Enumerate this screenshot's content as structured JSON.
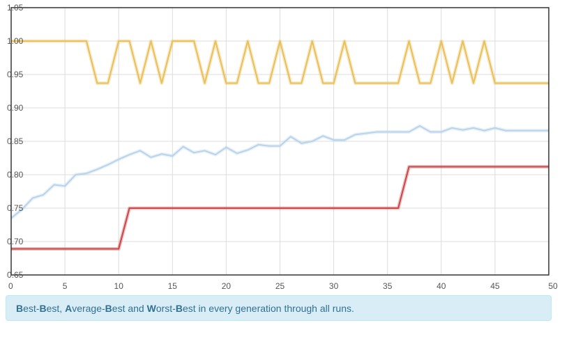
{
  "chart_data": {
    "type": "line",
    "xlim": [
      0,
      50
    ],
    "ylim": [
      0.65,
      1.05
    ],
    "x_ticks": [
      "0",
      "5",
      "10",
      "15",
      "20",
      "25",
      "30",
      "35",
      "40",
      "45",
      "50"
    ],
    "y_ticks": [
      "0.65",
      "0.70",
      "0.75",
      "0.80",
      "0.85",
      "0.90",
      "0.95",
      "1.00",
      "1.05"
    ],
    "grid": true,
    "x": [
      0,
      1,
      2,
      3,
      4,
      5,
      6,
      7,
      8,
      9,
      10,
      11,
      12,
      13,
      14,
      15,
      16,
      17,
      18,
      19,
      20,
      21,
      22,
      23,
      24,
      25,
      26,
      27,
      28,
      29,
      30,
      31,
      32,
      33,
      34,
      35,
      36,
      37,
      38,
      39,
      40,
      41,
      42,
      43,
      44,
      45,
      46,
      47,
      48,
      49,
      50
    ],
    "series": [
      {
        "color": "#e8c15a",
        "values": [
          1.0,
          1.0,
          1.0,
          1.0,
          1.0,
          1.0,
          1.0,
          1.0,
          0.937,
          0.937,
          1.0,
          1.0,
          0.937,
          1.0,
          0.937,
          1.0,
          1.0,
          1.0,
          0.937,
          1.0,
          0.937,
          0.937,
          1.0,
          0.937,
          0.937,
          1.0,
          0.937,
          0.937,
          1.0,
          0.937,
          0.937,
          1.0,
          0.937,
          0.937,
          0.937,
          0.937,
          0.937,
          1.0,
          0.937,
          0.937,
          1.0,
          0.937,
          1.0,
          0.937,
          1.0,
          0.937,
          0.937,
          0.937,
          0.937,
          0.937,
          0.937
        ]
      },
      {
        "color": "#b9d4ea",
        "values": [
          0.735,
          0.748,
          0.765,
          0.77,
          0.785,
          0.783,
          0.8,
          0.802,
          0.808,
          0.815,
          0.823,
          0.83,
          0.836,
          0.826,
          0.831,
          0.828,
          0.842,
          0.833,
          0.836,
          0.83,
          0.841,
          0.832,
          0.837,
          0.845,
          0.843,
          0.843,
          0.857,
          0.847,
          0.85,
          0.858,
          0.852,
          0.852,
          0.86,
          0.862,
          0.864,
          0.864,
          0.864,
          0.864,
          0.873,
          0.864,
          0.864,
          0.87,
          0.867,
          0.87,
          0.866,
          0.87,
          0.866,
          0.866,
          0.866,
          0.866,
          0.866
        ]
      },
      {
        "color": "#c9494a",
        "values": [
          0.689,
          0.689,
          0.689,
          0.689,
          0.689,
          0.689,
          0.689,
          0.689,
          0.689,
          0.689,
          0.689,
          0.75,
          0.75,
          0.75,
          0.75,
          0.75,
          0.75,
          0.75,
          0.75,
          0.75,
          0.75,
          0.75,
          0.75,
          0.75,
          0.75,
          0.75,
          0.75,
          0.75,
          0.75,
          0.75,
          0.75,
          0.75,
          0.75,
          0.75,
          0.75,
          0.75,
          0.75,
          0.812,
          0.812,
          0.812,
          0.812,
          0.812,
          0.812,
          0.812,
          0.812,
          0.812,
          0.812,
          0.812,
          0.812,
          0.812,
          0.812
        ]
      }
    ]
  },
  "caption": {
    "b1": "B",
    "t1": "est-",
    "b2": "B",
    "t2": "est, ",
    "b3": "A",
    "t3": "verage-",
    "b4": "B",
    "t4": "est and ",
    "b5": "W",
    "t5": "orst-",
    "b6": "B",
    "t6": "est in every generation through all runs."
  }
}
